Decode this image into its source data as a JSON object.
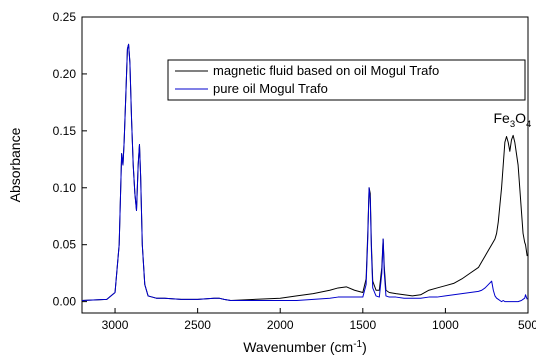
{
  "chart_data": {
    "type": "line",
    "xlabel": "Wavenumber (cm",
    "xlabel_sup": "-1",
    "xlabel_end": ")",
    "ylabel": "Absorbance",
    "xlim": [
      3200,
      500
    ],
    "ylim": [
      -0.01,
      0.25
    ],
    "x_ticks": [
      3000,
      2500,
      2000,
      1500,
      1000,
      500
    ],
    "x_tick_labels": [
      "3000",
      "2500",
      "2000",
      "1500",
      "1000",
      "500"
    ],
    "y_ticks": [
      0.0,
      0.05,
      0.1,
      0.15,
      0.2,
      0.25
    ],
    "y_tick_labels": [
      "0.00",
      "0.05",
      "0.10",
      "0.15",
      "0.20",
      "0.25"
    ],
    "grid": false,
    "legend_position": "top-right",
    "annotation": {
      "base": "Fe",
      "sub1": "3",
      "mid": "O",
      "sub2": "4",
      "x": 600,
      "y": 0.157
    },
    "series": [
      {
        "name": "magnetic fluid based on oil Mogul Trafo",
        "color": "#000000",
        "x": [
          3200,
          3050,
          3000,
          2975,
          2960,
          2952,
          2945,
          2935,
          2925,
          2918,
          2910,
          2900,
          2890,
          2880,
          2870,
          2860,
          2852,
          2845,
          2835,
          2820,
          2800,
          2750,
          2700,
          2600,
          2500,
          2400,
          2370,
          2340,
          2300,
          2000,
          1900,
          1800,
          1700,
          1650,
          1600,
          1550,
          1500,
          1480,
          1470,
          1462,
          1455,
          1448,
          1440,
          1420,
          1400,
          1385,
          1377,
          1370,
          1360,
          1340,
          1300,
          1250,
          1200,
          1150,
          1100,
          1050,
          1000,
          950,
          900,
          850,
          800,
          780,
          760,
          740,
          720,
          700,
          690,
          680,
          670,
          660,
          650,
          640,
          630,
          620,
          610,
          600,
          590,
          580,
          570,
          560,
          550,
          540,
          530,
          520,
          515,
          510,
          505
        ],
        "y": [
          0.001,
          0.002,
          0.008,
          0.05,
          0.13,
          0.12,
          0.14,
          0.18,
          0.222,
          0.226,
          0.21,
          0.16,
          0.12,
          0.095,
          0.08,
          0.12,
          0.138,
          0.11,
          0.05,
          0.015,
          0.005,
          0.003,
          0.003,
          0.002,
          0.002,
          0.003,
          0.003,
          0.002,
          0.001,
          0.003,
          0.005,
          0.007,
          0.01,
          0.012,
          0.013,
          0.01,
          0.008,
          0.02,
          0.06,
          0.1,
          0.095,
          0.05,
          0.018,
          0.01,
          0.01,
          0.03,
          0.055,
          0.03,
          0.01,
          0.008,
          0.007,
          0.006,
          0.005,
          0.006,
          0.01,
          0.012,
          0.014,
          0.016,
          0.02,
          0.025,
          0.03,
          0.035,
          0.04,
          0.045,
          0.05,
          0.055,
          0.06,
          0.07,
          0.085,
          0.1,
          0.12,
          0.14,
          0.145,
          0.14,
          0.132,
          0.142,
          0.146,
          0.14,
          0.13,
          0.12,
          0.1,
          0.08,
          0.06,
          0.052,
          0.05,
          0.045,
          0.04
        ]
      },
      {
        "name": "pure oil Mogul Trafo",
        "color": "#0000cc",
        "x": [
          3200,
          3050,
          3000,
          2975,
          2960,
          2952,
          2945,
          2935,
          2925,
          2918,
          2910,
          2900,
          2890,
          2880,
          2870,
          2860,
          2852,
          2845,
          2835,
          2820,
          2800,
          2750,
          2700,
          2600,
          2500,
          2400,
          2370,
          2340,
          2300,
          2000,
          1900,
          1800,
          1700,
          1650,
          1600,
          1550,
          1500,
          1480,
          1470,
          1462,
          1455,
          1448,
          1440,
          1420,
          1400,
          1385,
          1377,
          1370,
          1360,
          1340,
          1300,
          1250,
          1200,
          1150,
          1100,
          1050,
          1000,
          950,
          900,
          850,
          800,
          780,
          760,
          740,
          720,
          710,
          700,
          690,
          680,
          670,
          660,
          650,
          640,
          620,
          600,
          580,
          560,
          540,
          530,
          520,
          515,
          510,
          505
        ],
        "y": [
          0.001,
          0.002,
          0.008,
          0.05,
          0.13,
          0.12,
          0.14,
          0.18,
          0.222,
          0.226,
          0.21,
          0.16,
          0.12,
          0.095,
          0.08,
          0.12,
          0.138,
          0.11,
          0.05,
          0.015,
          0.005,
          0.003,
          0.003,
          0.002,
          0.002,
          0.003,
          0.003,
          0.002,
          0.001,
          0.001,
          0.001,
          0.002,
          0.003,
          0.004,
          0.004,
          0.004,
          0.004,
          0.015,
          0.055,
          0.1,
          0.09,
          0.045,
          0.012,
          0.005,
          0.004,
          0.025,
          0.055,
          0.025,
          0.005,
          0.004,
          0.004,
          0.003,
          0.003,
          0.003,
          0.004,
          0.004,
          0.005,
          0.006,
          0.007,
          0.008,
          0.009,
          0.01,
          0.012,
          0.015,
          0.018,
          0.01,
          0.005,
          0.003,
          0.002,
          0.001,
          0.0,
          0.001,
          0.0,
          0.0,
          0.0,
          0.0,
          0.0,
          0.001,
          0.002,
          0.003,
          0.006,
          0.004,
          0.002
        ]
      }
    ]
  }
}
